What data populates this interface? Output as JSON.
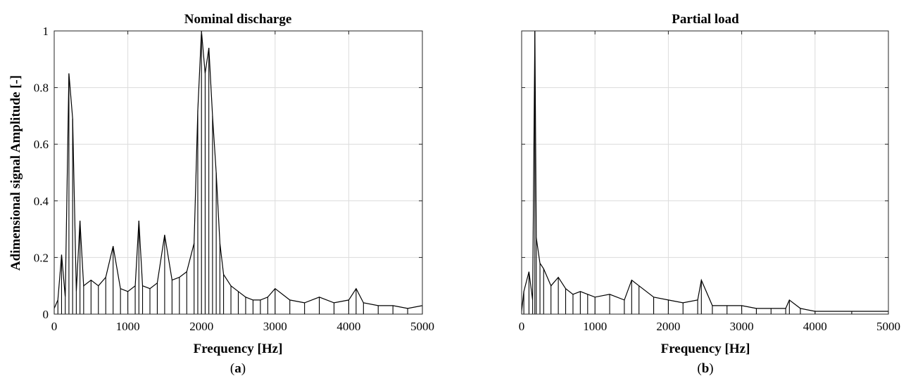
{
  "figure": {
    "panel_a_label": "a",
    "panel_b_label": "b"
  },
  "chart_data": [
    {
      "type": "line",
      "title": "Nominal discharge",
      "xlabel": "Frequency [Hz]",
      "ylabel": "Adimensional signal Amplitude [-]",
      "xlim": [
        0,
        5000
      ],
      "ylim": [
        0,
        1
      ],
      "xticks": [
        0,
        1000,
        2000,
        3000,
        4000,
        5000
      ],
      "yticks": [
        0,
        0.2,
        0.4,
        0.6,
        0.8,
        1
      ],
      "xtick_labels": [
        "0",
        "1000",
        "2000",
        "3000",
        "4000",
        "5000"
      ],
      "ytick_labels": [
        "0",
        "0.2",
        "0.4",
        "0.6",
        "0.8",
        "1"
      ],
      "grid": true,
      "line_color": "#000000",
      "series": [
        {
          "x": [
            0,
            50,
            100,
            150,
            200,
            250,
            300,
            350,
            400,
            500,
            600,
            700,
            800,
            900,
            1000,
            1100,
            1150,
            1200,
            1300,
            1400,
            1500,
            1600,
            1700,
            1800,
            1900,
            1950,
            2000,
            2050,
            2100,
            2150,
            2200,
            2250,
            2300,
            2400,
            2500,
            2600,
            2700,
            2800,
            2900,
            3000,
            3200,
            3400,
            3600,
            3800,
            4000,
            4100,
            4200,
            4400,
            4600,
            4800,
            5000
          ],
          "y": [
            0.02,
            0.05,
            0.21,
            0.06,
            0.85,
            0.69,
            0.08,
            0.33,
            0.1,
            0.12,
            0.1,
            0.13,
            0.24,
            0.09,
            0.08,
            0.1,
            0.33,
            0.1,
            0.09,
            0.11,
            0.28,
            0.12,
            0.13,
            0.15,
            0.25,
            0.72,
            1.0,
            0.85,
            0.94,
            0.7,
            0.5,
            0.25,
            0.14,
            0.1,
            0.08,
            0.06,
            0.05,
            0.05,
            0.06,
            0.09,
            0.05,
            0.04,
            0.06,
            0.04,
            0.05,
            0.09,
            0.04,
            0.03,
            0.03,
            0.02,
            0.03
          ]
        }
      ]
    },
    {
      "type": "line",
      "title": "Partial load",
      "xlabel": "Frequency [Hz]",
      "ylabel": "",
      "xlim": [
        0,
        5000
      ],
      "ylim": [
        0,
        1
      ],
      "xticks": [
        0,
        1000,
        2000,
        3000,
        4000,
        5000
      ],
      "yticks": [
        0,
        0.2,
        0.4,
        0.6,
        0.8,
        1
      ],
      "xtick_labels": [
        "0",
        "1000",
        "2000",
        "3000",
        "4000",
        "5000"
      ],
      "ytick_labels": [],
      "grid": true,
      "line_color": "#000000",
      "series": [
        {
          "x": [
            0,
            30,
            100,
            150,
            180,
            200,
            250,
            300,
            400,
            500,
            600,
            700,
            800,
            900,
            1000,
            1200,
            1400,
            1500,
            1600,
            1800,
            2000,
            2200,
            2400,
            2450,
            2600,
            2800,
            3000,
            3200,
            3400,
            3600,
            3650,
            3800,
            4000,
            4500,
            5000
          ],
          "y": [
            0.01,
            0.08,
            0.15,
            0.05,
            1.0,
            0.27,
            0.18,
            0.16,
            0.1,
            0.13,
            0.09,
            0.07,
            0.08,
            0.07,
            0.06,
            0.07,
            0.05,
            0.12,
            0.1,
            0.06,
            0.05,
            0.04,
            0.05,
            0.12,
            0.03,
            0.03,
            0.03,
            0.02,
            0.02,
            0.02,
            0.05,
            0.02,
            0.01,
            0.01,
            0.01
          ]
        }
      ]
    }
  ]
}
